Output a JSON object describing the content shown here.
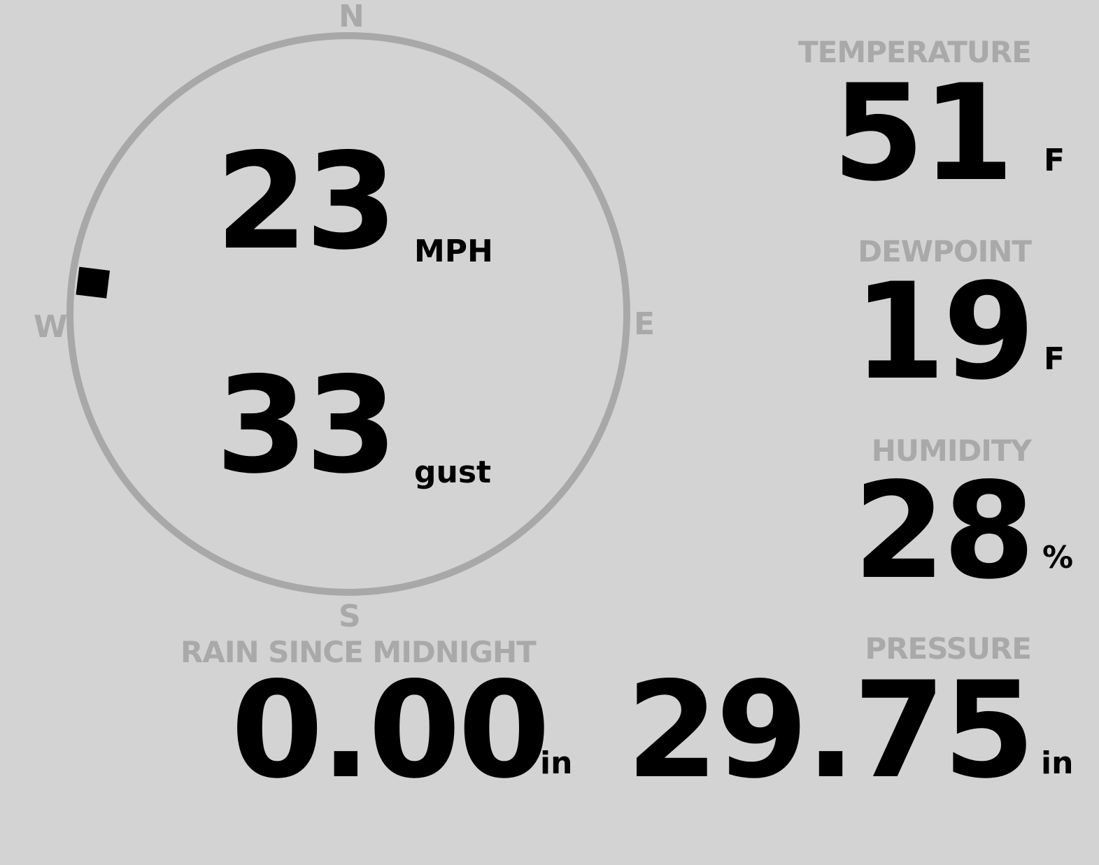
{
  "compass": {
    "n": "N",
    "e": "E",
    "s": "S",
    "w": "W",
    "wind_direction_deg": 277,
    "ring_color": "#a8a8a8",
    "marker_color": "#000000"
  },
  "wind": {
    "speed": "23",
    "speed_unit": "MPH",
    "gust": "33",
    "gust_unit": "gust"
  },
  "temperature": {
    "label": "TEMPERATURE",
    "value": "51",
    "unit": "F"
  },
  "dewpoint": {
    "label": "DEWPOINT",
    "value": "19",
    "unit": "F"
  },
  "humidity": {
    "label": "HUMIDITY",
    "value": "28",
    "unit": "%"
  },
  "rain": {
    "label": "RAIN SINCE MIDNIGHT",
    "value": "0.00",
    "unit": "in"
  },
  "pressure": {
    "label": "PRESSURE",
    "value": "29.75",
    "unit": "in"
  },
  "colors": {
    "background": "#d3d3d3",
    "label": "#a9a9a9",
    "value": "#000000"
  }
}
